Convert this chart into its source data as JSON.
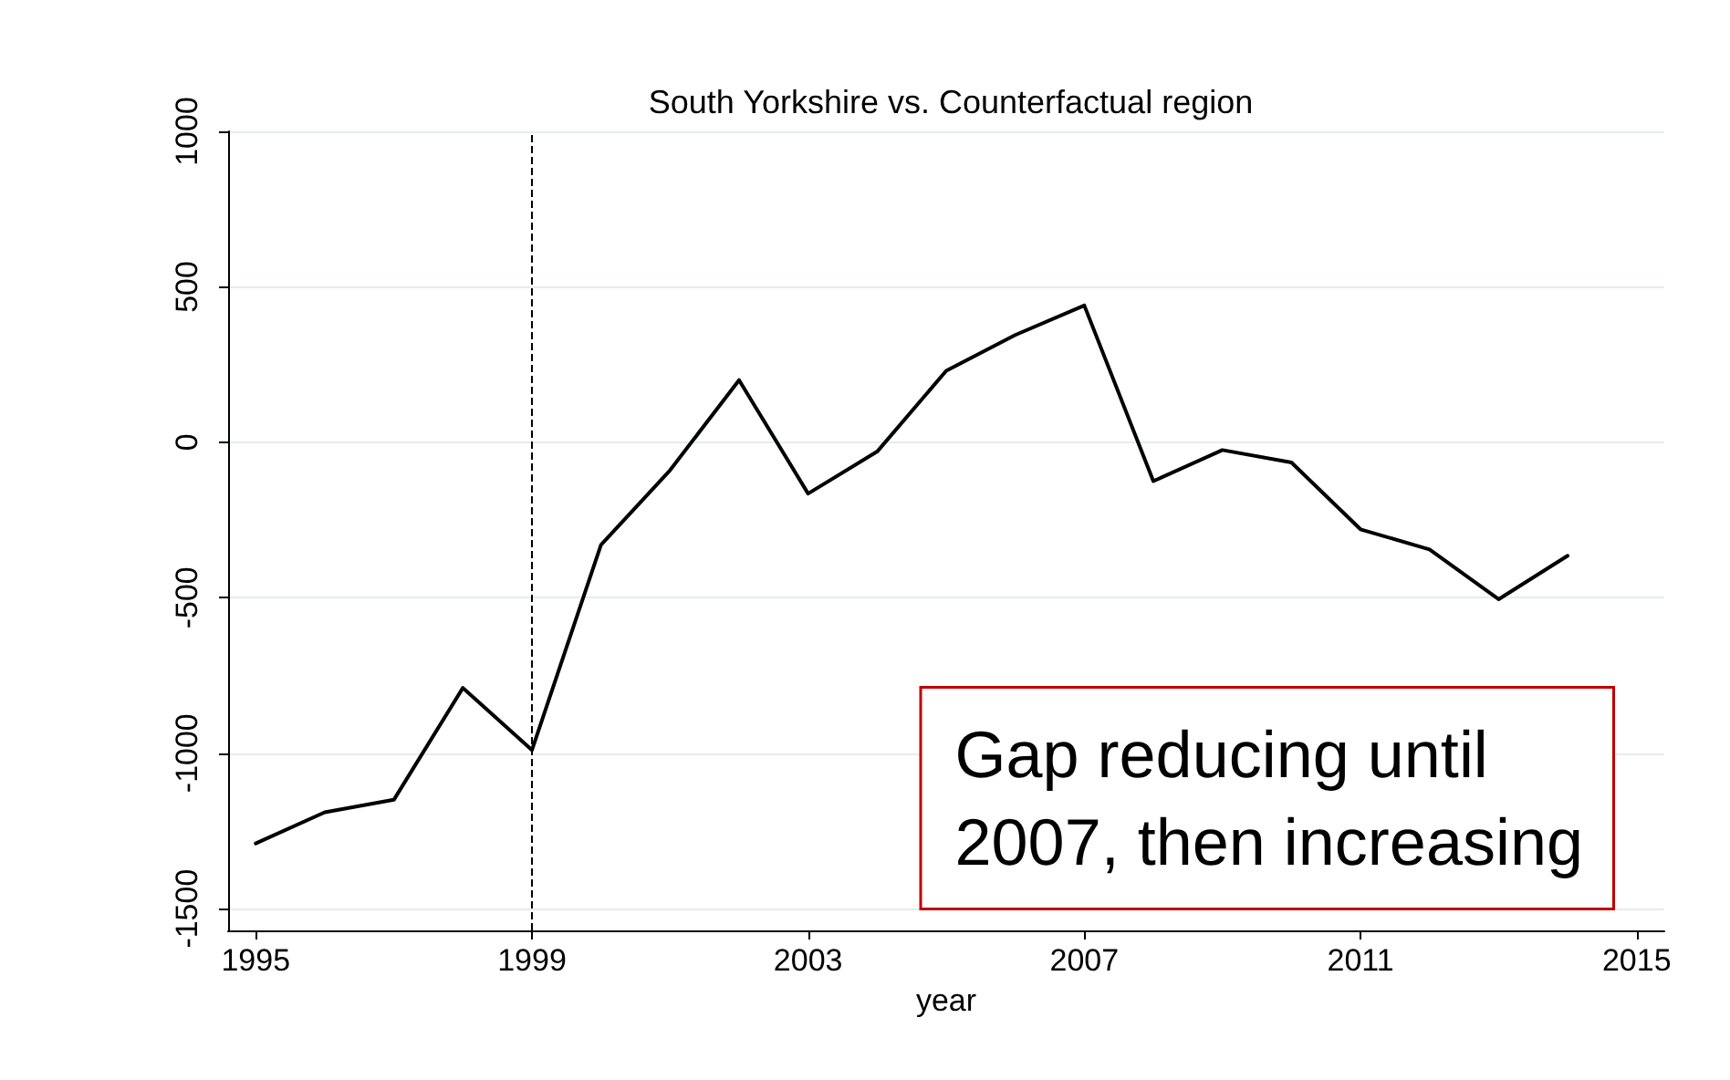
{
  "chart_data": {
    "type": "line",
    "title": "South Yorkshire vs. Counterfactual region",
    "xlabel": "year",
    "x": [
      1995,
      1996,
      1997,
      1998,
      1999,
      2000,
      2001,
      2002,
      2003,
      2004,
      2005,
      2006,
      2007,
      2008,
      2009,
      2010,
      2011,
      2012,
      2013,
      2014
    ],
    "series": [
      {
        "color": "#000000",
        "values": [
          -1290,
          -1190,
          -1150,
          -790,
          -990,
          -330,
          -90,
          200,
          -165,
          -30,
          230,
          345,
          440,
          -125,
          -25,
          -65,
          -280,
          -345,
          -505,
          -365
        ]
      }
    ],
    "xlim": [
      1994.6,
      2015.4
    ],
    "xticks": [
      1995,
      1999,
      2003,
      2007,
      2011,
      2015
    ],
    "ylim": [
      -1570,
      1000
    ],
    "yticks": [
      -1500,
      -1000,
      -500,
      0,
      500,
      1000
    ],
    "grid": "y",
    "marker": "none",
    "line_style": "solid",
    "ref_lines": [
      {
        "axis": "x",
        "value": 1999,
        "color": "#000000",
        "line_style": "dashed"
      }
    ],
    "annotations": [
      "Gap reducing until\n2007, then increasing"
    ]
  }
}
